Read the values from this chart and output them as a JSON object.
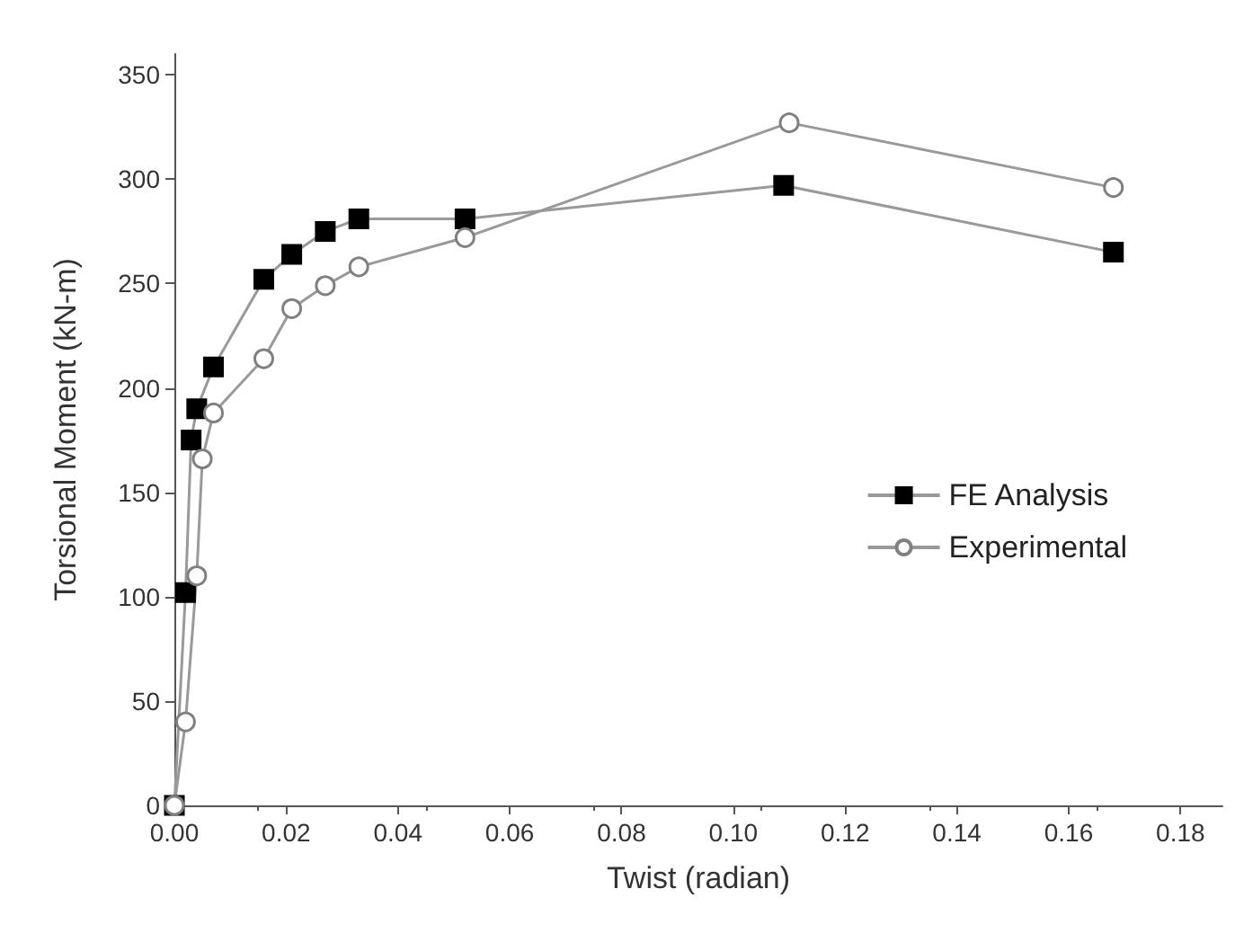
{
  "chart_data": {
    "type": "line",
    "xlabel": "Twist (radian)",
    "ylabel": "Torsional Moment (kN-m)",
    "xlim": [
      0,
      0.1875
    ],
    "xticks": [
      {
        "value": 0,
        "label": "0.00"
      },
      {
        "value": 0.02,
        "label": "0.02"
      },
      {
        "value": 0.04,
        "label": "0.04"
      },
      {
        "value": 0.06,
        "label": "0.06"
      },
      {
        "value": 0.08,
        "label": "0.08"
      },
      {
        "value": 0.1,
        "label": "0.10"
      },
      {
        "value": 0.12,
        "label": "0.12"
      },
      {
        "value": 0.14,
        "label": "0.14"
      },
      {
        "value": 0.16,
        "label": "0.16"
      },
      {
        "value": 0.18,
        "label": "0.18"
      }
    ],
    "ylim": [
      0,
      360
    ],
    "yticks": [
      0,
      50,
      100,
      150,
      200,
      250,
      300,
      350
    ],
    "grid": false,
    "legend": "right",
    "line_style": "solid",
    "series": [
      {
        "name": "FE Analysis",
        "color": "#000000",
        "marker": "square",
        "x": [
          0,
          0.002,
          0.003,
          0.004,
          0.007,
          0.016,
          0.021,
          0.027,
          0.033,
          0.052,
          0.109,
          0.168
        ],
        "values": [
          0,
          102,
          175,
          190,
          210,
          252,
          264,
          275,
          281,
          281,
          297,
          265
        ]
      },
      {
        "name": "Experimental",
        "color": "#808080",
        "marker": "circle",
        "x": [
          0,
          0.002,
          0.004,
          0.005,
          0.007,
          0.016,
          0.021,
          0.027,
          0.033,
          0.052,
          0.11,
          0.168
        ],
        "values": [
          0,
          40,
          110,
          166,
          188,
          214,
          238,
          249,
          258,
          272,
          327,
          296
        ]
      }
    ]
  }
}
